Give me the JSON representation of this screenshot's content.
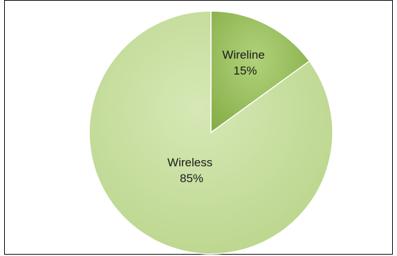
{
  "chart_data": {
    "type": "pie",
    "title": "",
    "categories": [
      "Wireline",
      "Wireless"
    ],
    "values": [
      15,
      85
    ],
    "labels": [
      {
        "name": "Wireline",
        "value_text": "15%"
      },
      {
        "name": "Wireless",
        "value_text": "85%"
      }
    ],
    "colors": [
      "#95bb5a",
      "#c3dc98"
    ],
    "legend": "none",
    "start": "top",
    "direction": "clockwise"
  }
}
